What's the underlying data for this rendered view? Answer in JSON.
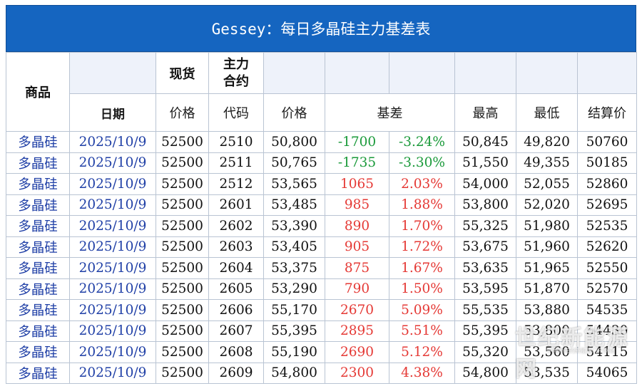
{
  "title": "Gessey：每日多晶硅主力基差表",
  "headers": {
    "product": "商品",
    "spot": "现货",
    "main_contract": "主力\n合约",
    "date": "日期",
    "price": "价格",
    "code": "代码",
    "futures_price": "价格",
    "basis": "基差",
    "high": "最高",
    "low": "最低",
    "settle": "结算价"
  },
  "rows": [
    {
      "product": "多晶硅",
      "date": "2025/10/9",
      "spot": "52500",
      "code": "2510",
      "price": "50,800",
      "basis": "-1700",
      "pct": "-3.24%",
      "high": "50,845",
      "low": "49,820",
      "settle": "50760",
      "dir": "neg"
    },
    {
      "product": "多晶硅",
      "date": "2025/10/9",
      "spot": "52500",
      "code": "2511",
      "price": "50,765",
      "basis": "-1735",
      "pct": "-3.30%",
      "high": "51,550",
      "low": "49,355",
      "settle": "50185",
      "dir": "neg"
    },
    {
      "product": "多晶硅",
      "date": "2025/10/9",
      "spot": "52500",
      "code": "2512",
      "price": "53,565",
      "basis": "1065",
      "pct": "2.03%",
      "high": "54,000",
      "low": "52,055",
      "settle": "52860",
      "dir": "pos"
    },
    {
      "product": "多晶硅",
      "date": "2025/10/9",
      "spot": "52500",
      "code": "2601",
      "price": "53,485",
      "basis": "985",
      "pct": "1.88%",
      "high": "53,800",
      "low": "52,020",
      "settle": "52695",
      "dir": "pos"
    },
    {
      "product": "多晶硅",
      "date": "2025/10/9",
      "spot": "52500",
      "code": "2602",
      "price": "53,390",
      "basis": "890",
      "pct": "1.70%",
      "high": "55,325",
      "low": "51,980",
      "settle": "52535",
      "dir": "pos"
    },
    {
      "product": "多晶硅",
      "date": "2025/10/9",
      "spot": "52500",
      "code": "2603",
      "price": "53,405",
      "basis": "905",
      "pct": "1.72%",
      "high": "53,675",
      "low": "51,960",
      "settle": "52620",
      "dir": "pos"
    },
    {
      "product": "多晶硅",
      "date": "2025/10/9",
      "spot": "52500",
      "code": "2604",
      "price": "53,375",
      "basis": "875",
      "pct": "1.67%",
      "high": "53,635",
      "low": "51,965",
      "settle": "52550",
      "dir": "pos"
    },
    {
      "product": "多晶硅",
      "date": "2025/10/9",
      "spot": "52500",
      "code": "2605",
      "price": "53,290",
      "basis": "790",
      "pct": "1.50%",
      "high": "53,595",
      "low": "51,870",
      "settle": "52570",
      "dir": "pos"
    },
    {
      "product": "多晶硅",
      "date": "2025/10/9",
      "spot": "52500",
      "code": "2606",
      "price": "55,170",
      "basis": "2670",
      "pct": "5.09%",
      "high": "55,535",
      "low": "53,880",
      "settle": "54535",
      "dir": "pos"
    },
    {
      "product": "多晶硅",
      "date": "2025/10/9",
      "spot": "52500",
      "code": "2607",
      "price": "55,395",
      "basis": "2895",
      "pct": "5.51%",
      "high": "55,395",
      "low": "53,800",
      "settle": "54430",
      "dir": "pos"
    },
    {
      "product": "多晶硅",
      "date": "2025/10/9",
      "spot": "52500",
      "code": "2608",
      "price": "55,190",
      "basis": "2690",
      "pct": "5.12%",
      "high": "55,320",
      "low": "53,560",
      "settle": "54115",
      "dir": "pos"
    },
    {
      "product": "多晶硅",
      "date": "2025/10/9",
      "spot": "52500",
      "code": "2609",
      "price": "54,800",
      "basis": "2300",
      "pct": "4.38%",
      "high": "54,800",
      "low": "53,535",
      "settle": "54065",
      "dir": "pos"
    }
  ],
  "watermark": {
    "text": "世纪新能源网",
    "subtext": "中国领先的新能源门户网站"
  },
  "colors": {
    "title_bg": "#1565c0",
    "negative": "#1a9a3a",
    "positive": "#e53935",
    "product_text": "#1f3fa6"
  }
}
